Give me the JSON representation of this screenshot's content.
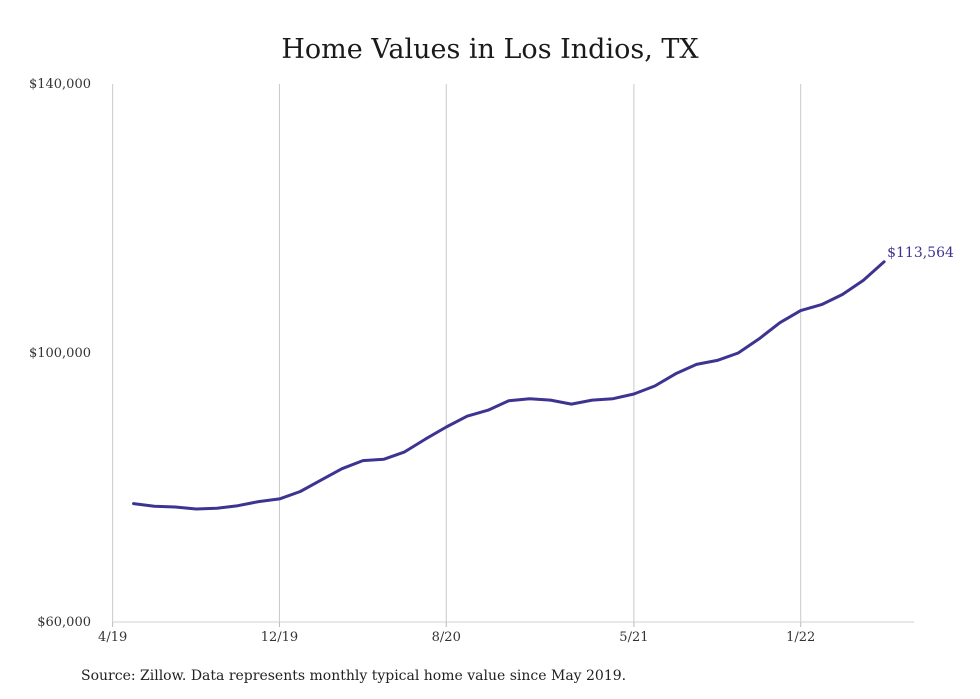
{
  "chart_data": {
    "type": "line",
    "title": "Home Values in Los Indios, TX",
    "source": "Source: Zillow. Data represents monthly typical home value since May 2019.",
    "xlabel": "",
    "ylabel": "",
    "ylim": [
      60000,
      140000
    ],
    "y_ticks": [
      "$140,000",
      "$100,000",
      "$60,000"
    ],
    "y_tick_values": [
      140000,
      100000,
      60000
    ],
    "x_ticks": [
      "4/19",
      "12/19",
      "8/20",
      "5/21",
      "1/22"
    ],
    "x_tick_index": [
      -1,
      7,
      15,
      24,
      32
    ],
    "grid": "vertical",
    "line_color": "#3d3491",
    "end_label": "$113,564",
    "x": [
      "5/19",
      "6/19",
      "7/19",
      "8/19",
      "9/19",
      "10/19",
      "11/19",
      "12/19",
      "1/20",
      "2/20",
      "3/20",
      "4/20",
      "5/20",
      "6/20",
      "7/20",
      "8/20",
      "9/20",
      "10/20",
      "11/20",
      "12/20",
      "1/21",
      "2/21",
      "3/21",
      "4/21",
      "5/21",
      "6/21",
      "7/21",
      "8/21",
      "9/21",
      "10/21",
      "11/21",
      "12/21",
      "1/22",
      "2/22",
      "3/22",
      "4/22",
      "5/22"
    ],
    "series": [
      {
        "values": [
          77600,
          77200,
          77100,
          76800,
          76900,
          77300,
          77900,
          78300,
          79400,
          81100,
          82800,
          84000,
          84200,
          85300,
          87200,
          89000,
          90600,
          91500,
          92900,
          93200,
          93000,
          92400,
          93000,
          93200,
          93900,
          95100,
          96900,
          98300,
          98900,
          100000,
          102100,
          104500,
          106300,
          107200,
          108700,
          110800,
          113564
        ]
      }
    ]
  }
}
